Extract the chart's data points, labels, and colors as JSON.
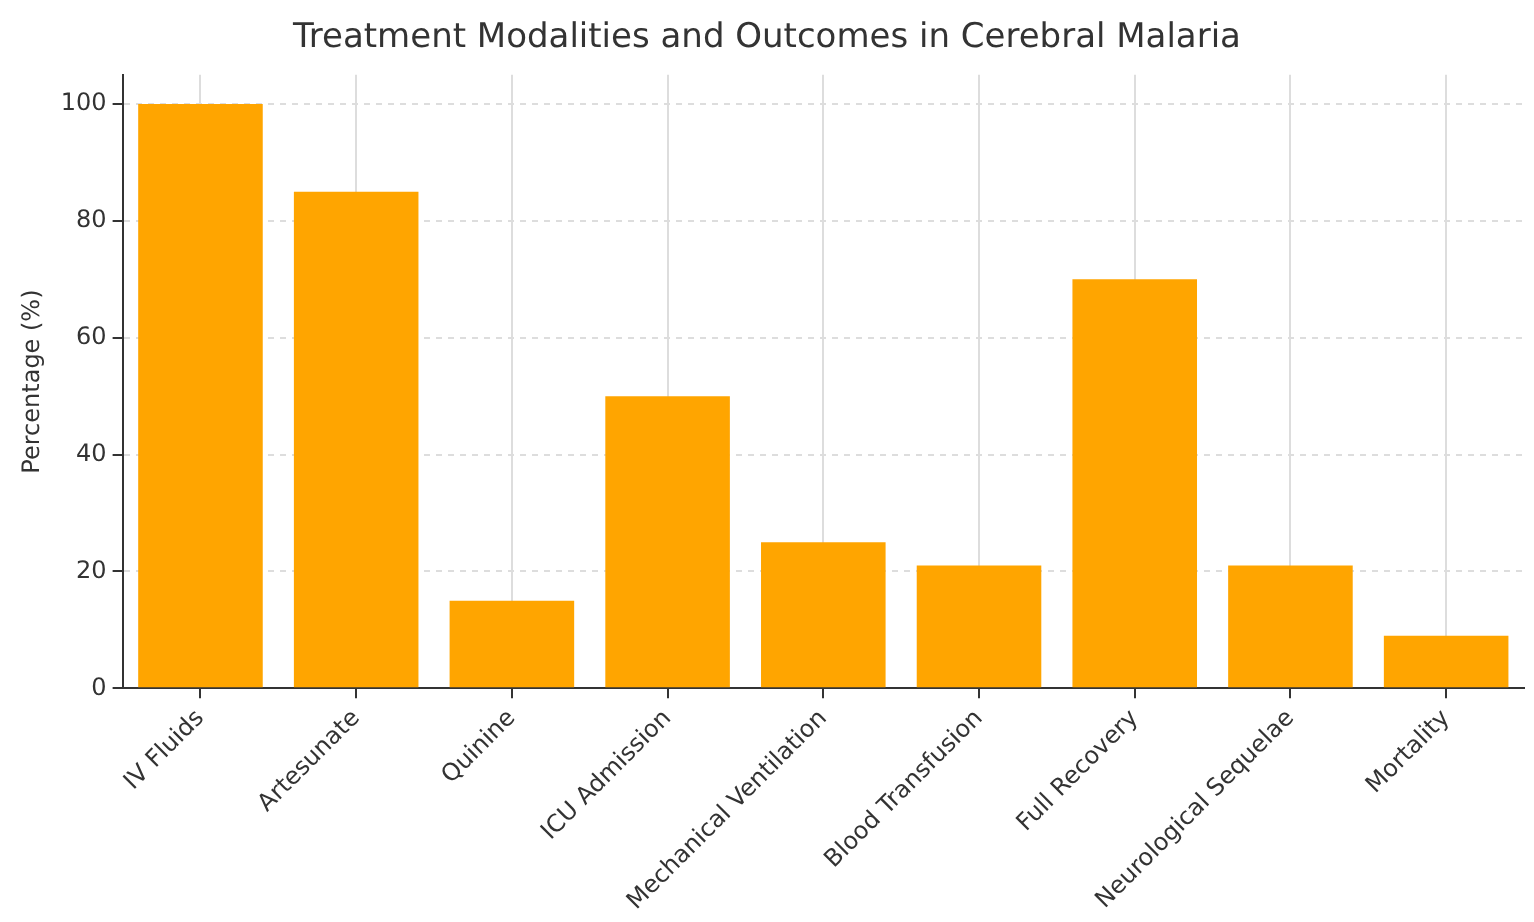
{
  "chart_data": {
    "type": "bar",
    "title": "Treatment Modalities and Outcomes in Cerebral Malaria",
    "ylabel": "Percentage (%)",
    "categories": [
      "IV Fluids",
      "Artesunate",
      "Quinine",
      "ICU Admission",
      "Mechanical Ventilation",
      "Blood Transfusion",
      "Full Recovery",
      "Neurological Sequelae",
      "Mortality"
    ],
    "values": [
      100,
      85,
      15,
      50,
      25,
      21,
      70,
      21,
      9
    ],
    "color": "#ffa500",
    "ylim": [
      0,
      105
    ],
    "yticks": [
      0,
      20,
      40,
      60,
      80,
      100
    ],
    "grid": true,
    "legend": false
  }
}
